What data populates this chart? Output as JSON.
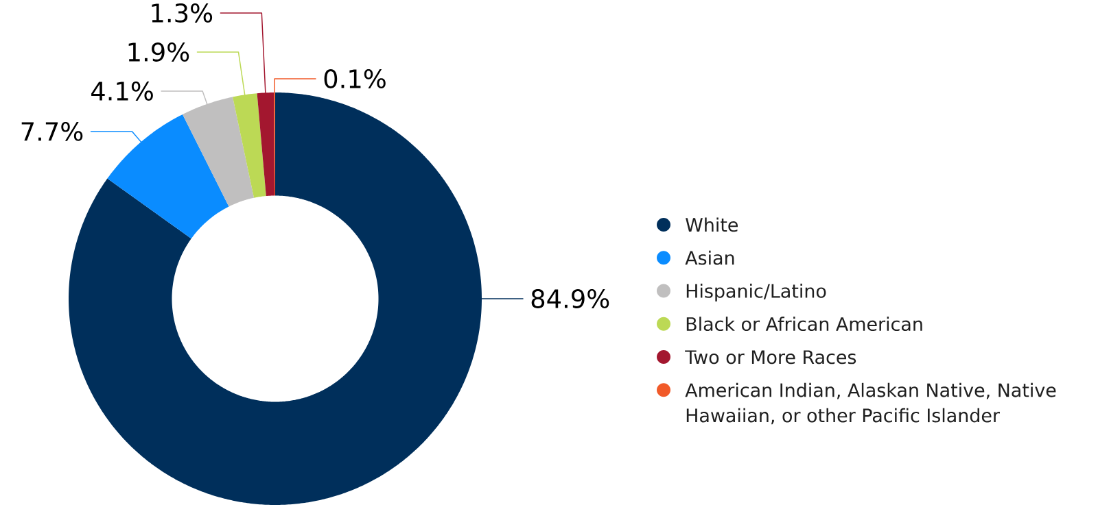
{
  "chart_data": {
    "type": "donut",
    "categories": [
      "White",
      "Asian",
      "Hispanic/Latino",
      "Black or African American",
      "Two or More Races",
      "American Indian, Alaskan Native, Native Hawaiian, or other Pacific Islander"
    ],
    "values": [
      84.9,
      7.7,
      4.1,
      1.9,
      1.3,
      0.1
    ],
    "colors": [
      "#002f5b",
      "#0a8cff",
      "#c0bfbf",
      "#bcd955",
      "#a3172f",
      "#f15a29"
    ],
    "value_labels": [
      "84.9%",
      "7.7%",
      "4.1%",
      "1.9%",
      "1.3%",
      "0.1%"
    ],
    "legend": "right"
  }
}
